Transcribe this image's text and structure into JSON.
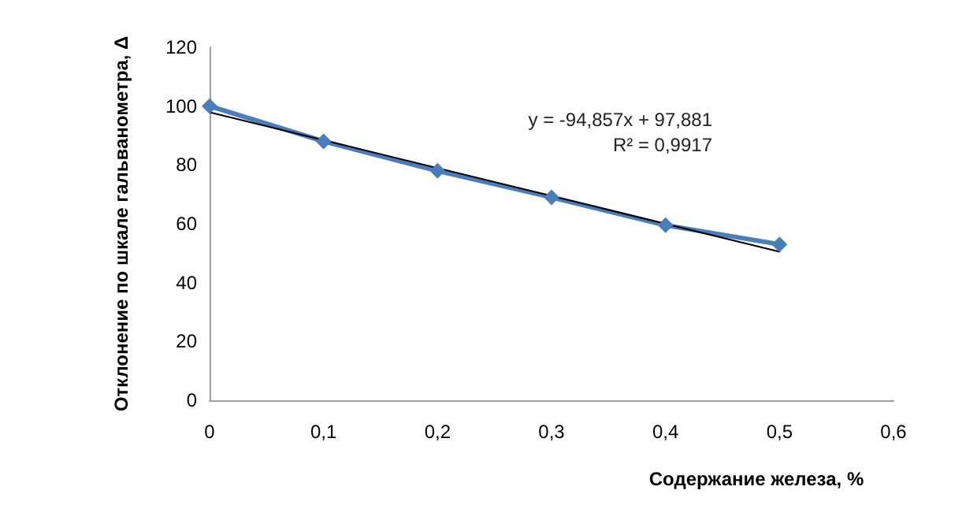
{
  "chart_data": {
    "type": "line",
    "xlabel": "Содержание железа, %",
    "ylabel": "Отклонение по шкале гальванометра, Δ",
    "x": [
      0,
      0.1,
      0.2,
      0.3,
      0.4,
      0.5
    ],
    "series": [
      {
        "color": "#4a7ebb",
        "values": [
          100,
          88,
          78,
          69,
          59.5,
          53
        ],
        "marker": "diamond"
      },
      {
        "type": "line",
        "color": "#000000",
        "x": [
          0,
          0.5
        ],
        "values": [
          97.9,
          50.5
        ],
        "marker": "none"
      }
    ],
    "xlim": [
      0,
      0.6
    ],
    "xticks": [
      {
        "value": 0,
        "label": "0"
      },
      {
        "value": 0.1,
        "label": "0,1"
      },
      {
        "value": 0.2,
        "label": "0,2"
      },
      {
        "value": 0.3,
        "label": "0,3"
      },
      {
        "value": 0.4,
        "label": "0,4"
      },
      {
        "value": 0.5,
        "label": "0,5"
      },
      {
        "value": 0.6,
        "label": "0,6"
      }
    ],
    "ylim": [
      0,
      120
    ],
    "yticks": [
      0,
      20,
      40,
      60,
      80,
      100,
      120
    ],
    "grid": false,
    "annotations": [
      "y = -94,857x + 97,881",
      "R² = 0,9917"
    ]
  }
}
